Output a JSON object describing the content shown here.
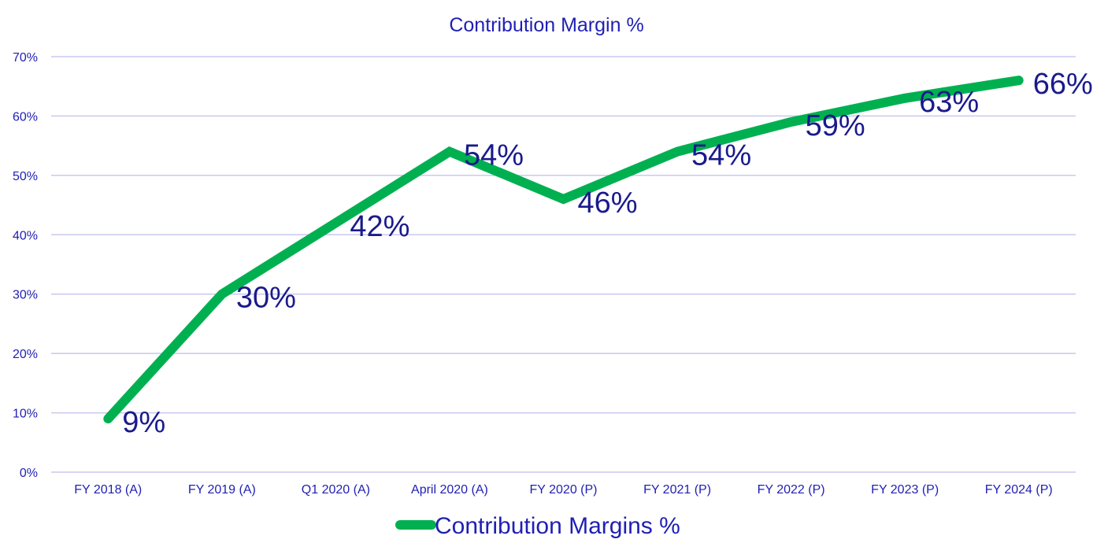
{
  "chart_data": {
    "type": "line",
    "title": "Contribution Margin %",
    "categories": [
      "FY 2018 (A)",
      "FY 2019 (A)",
      "Q1 2020 (A)",
      "April 2020 (A)",
      "FY 2020 (P)",
      "FY 2021 (P)",
      "FY 2022 (P)",
      "FY 2023 (P)",
      "FY 2024 (P)"
    ],
    "series": [
      {
        "name": "Contribution Margins %",
        "values": [
          9,
          30,
          42,
          54,
          46,
          54,
          59,
          63,
          66
        ],
        "labels": [
          "9%",
          "30%",
          "42%",
          "54%",
          "46%",
          "54%",
          "59%",
          "63%",
          "66%"
        ],
        "color": "#00b050"
      }
    ],
    "yticks": [
      "0%",
      "10%",
      "20%",
      "30%",
      "40%",
      "50%",
      "60%",
      "70%"
    ],
    "ylim": [
      0,
      70
    ],
    "grid": true,
    "legend": "bottom",
    "xlabel": "",
    "ylabel": ""
  },
  "colors": {
    "text": "#1f1fb4",
    "data_label": "#1a1a8c",
    "grid": "#c8c8f0",
    "line": "#00b050"
  }
}
